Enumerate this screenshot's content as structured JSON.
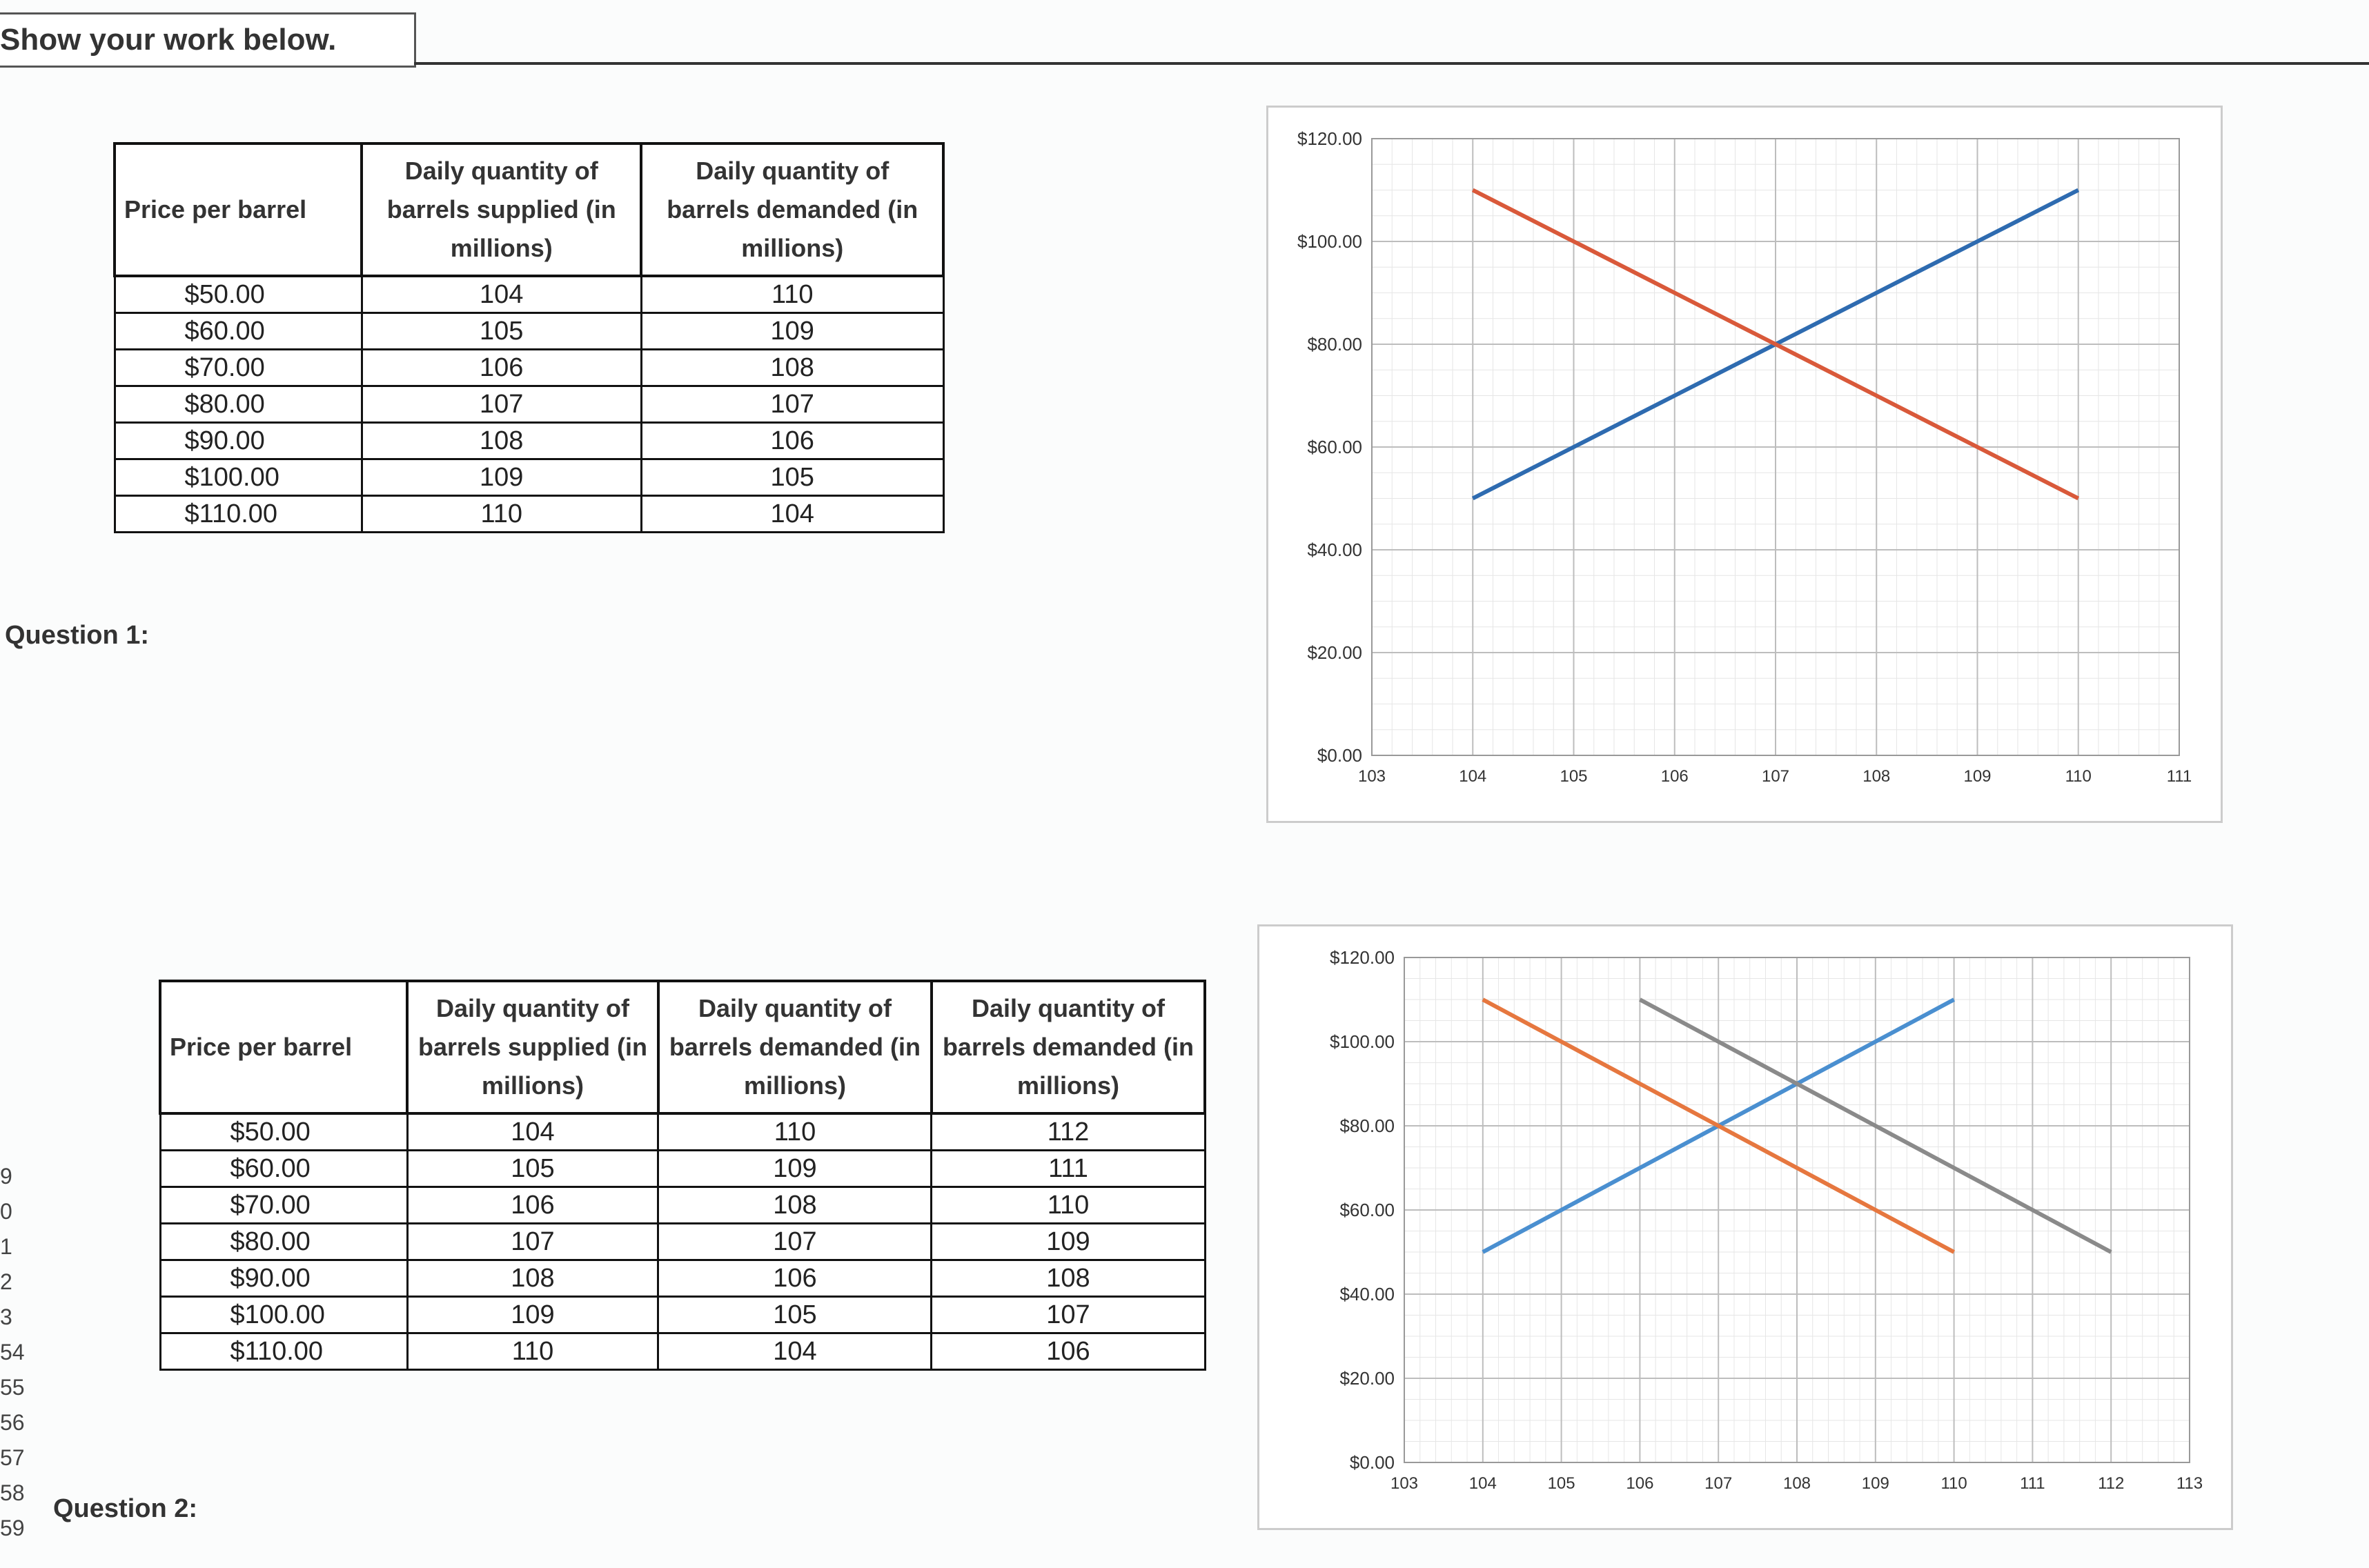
{
  "header": {
    "title": "Show your work below."
  },
  "question1": {
    "label": "Question 1:"
  },
  "question2": {
    "label": "Question 2:"
  },
  "row_numbers": [
    "9",
    "0",
    "1",
    "2",
    "3",
    "54",
    "55",
    "56",
    "57",
    "58",
    "59"
  ],
  "table1": {
    "headers": [
      "Price per barrel",
      "Daily quantity of barrels supplied (in millions)",
      "Daily quantity of barrels demanded (in millions)"
    ],
    "rows": [
      [
        "$50.00",
        "104",
        "110"
      ],
      [
        "$60.00",
        "105",
        "109"
      ],
      [
        "$70.00",
        "106",
        "108"
      ],
      [
        "$80.00",
        "107",
        "107"
      ],
      [
        "$90.00",
        "108",
        "106"
      ],
      [
        "$100.00",
        "109",
        "105"
      ],
      [
        "$110.00",
        "110",
        "104"
      ]
    ]
  },
  "table2": {
    "headers": [
      "Price per barrel",
      "Daily quantity of barrels supplied (in millions)",
      "Daily quantity of barrels demanded (in millions)",
      "Daily quantity of barrels demanded (in millions)"
    ],
    "rows": [
      [
        "$50.00",
        "104",
        "110",
        "112"
      ],
      [
        "$60.00",
        "105",
        "109",
        "111"
      ],
      [
        "$70.00",
        "106",
        "108",
        "110"
      ],
      [
        "$80.00",
        "107",
        "107",
        "109"
      ],
      [
        "$90.00",
        "108",
        "106",
        "108"
      ],
      [
        "$100.00",
        "109",
        "105",
        "107"
      ],
      [
        "$110.00",
        "110",
        "104",
        "106"
      ]
    ]
  },
  "chart_data": [
    {
      "type": "line",
      "xlim": [
        103,
        111
      ],
      "ylim": [
        0,
        120
      ],
      "x_ticks": [
        "103",
        "104",
        "105",
        "106",
        "107",
        "108",
        "109",
        "110",
        "111"
      ],
      "y_ticks": [
        "$0.00",
        "$20.00",
        "$40.00",
        "$60.00",
        "$80.00",
        "$100.00",
        "$120.00"
      ],
      "grid": true,
      "series": [
        {
          "color": "#2e6bb0",
          "points": [
            [
              104,
              50
            ],
            [
              105,
              60
            ],
            [
              106,
              70
            ],
            [
              107,
              80
            ],
            [
              108,
              90
            ],
            [
              109,
              100
            ],
            [
              110,
              110
            ]
          ]
        },
        {
          "color": "#d9593a",
          "points": [
            [
              104,
              110
            ],
            [
              105,
              100
            ],
            [
              106,
              90
            ],
            [
              107,
              80
            ],
            [
              108,
              70
            ],
            [
              109,
              60
            ],
            [
              110,
              50
            ]
          ]
        }
      ]
    },
    {
      "type": "line",
      "xlim": [
        103,
        113
      ],
      "ylim": [
        0,
        120
      ],
      "x_ticks": [
        "103",
        "104",
        "105",
        "106",
        "107",
        "108",
        "109",
        "110",
        "111",
        "112",
        "113"
      ],
      "y_ticks": [
        "$0.00",
        "$20.00",
        "$40.00",
        "$60.00",
        "$80.00",
        "$100.00",
        "$120.00"
      ],
      "grid": true,
      "series": [
        {
          "color": "#4a8fd0",
          "points": [
            [
              104,
              50
            ],
            [
              105,
              60
            ],
            [
              106,
              70
            ],
            [
              107,
              80
            ],
            [
              108,
              90
            ],
            [
              109,
              100
            ],
            [
              110,
              110
            ]
          ]
        },
        {
          "color": "#e6773f",
          "points": [
            [
              104,
              110
            ],
            [
              105,
              100
            ],
            [
              106,
              90
            ],
            [
              107,
              80
            ],
            [
              108,
              70
            ],
            [
              109,
              60
            ],
            [
              110,
              50
            ]
          ]
        },
        {
          "color": "#8a8a8a",
          "points": [
            [
              106,
              110
            ],
            [
              107,
              100
            ],
            [
              108,
              90
            ],
            [
              109,
              80
            ],
            [
              110,
              70
            ],
            [
              111,
              60
            ],
            [
              112,
              50
            ]
          ]
        }
      ]
    }
  ]
}
